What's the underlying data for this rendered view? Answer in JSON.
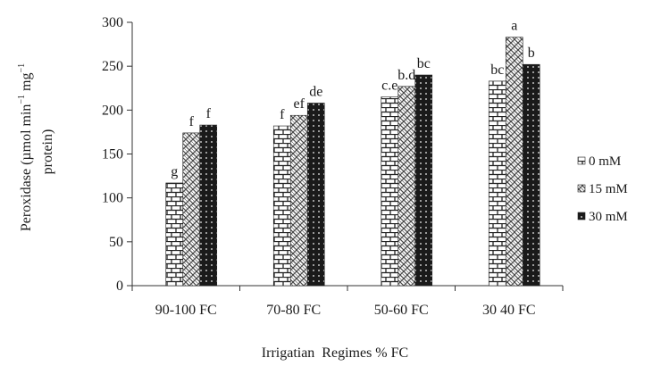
{
  "chart_data": {
    "type": "bar",
    "xlabel": "Irrigatian  Regimes % FC",
    "ylabel_line1": "Peroxidase (µmol min",
    "ylabel_sup1": "−1",
    "ylabel_mid": " mg",
    "ylabel_sup2": "−1",
    "ylabel_line2": "protein)",
    "ylim": [
      0,
      300
    ],
    "yticks": [
      "0",
      "50",
      "100",
      "150",
      "200",
      "250",
      "300"
    ],
    "categories": [
      "90-100 FC",
      "70-80 FC",
      "50-60 FC",
      "30 40 FC"
    ],
    "series": [
      {
        "name": "0 mM",
        "values": [
          117,
          182,
          215,
          233
        ],
        "letters": [
          "g",
          "f",
          "c.e",
          "bc"
        ],
        "color": "#222222"
      },
      {
        "name": "15 mM",
        "values": [
          174,
          194,
          227,
          283
        ],
        "letters": [
          "f",
          "ef",
          "b.d",
          "a"
        ],
        "color": "#555555"
      },
      {
        "name": "30 mM",
        "values": [
          183,
          208,
          240,
          252
        ],
        "letters": [
          "f",
          "de",
          "bc",
          "b"
        ],
        "color": "#1a1a1a"
      }
    ],
    "legend_position": "right",
    "grid": false
  }
}
